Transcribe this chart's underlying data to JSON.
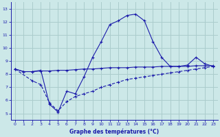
{
  "title": "Graphe des températures (°C)",
  "bg_color": "#cce8e8",
  "grid_color": "#aacccc",
  "line_color": "#1a1aaa",
  "xlim": [
    -0.5,
    23.5
  ],
  "ylim": [
    4.5,
    13.5
  ],
  "xticks": [
    0,
    1,
    2,
    3,
    4,
    5,
    6,
    7,
    8,
    9,
    10,
    11,
    12,
    13,
    14,
    15,
    16,
    17,
    18,
    19,
    20,
    21,
    22,
    23
  ],
  "yticks": [
    5,
    6,
    7,
    8,
    9,
    10,
    11,
    12,
    13
  ],
  "line1_x": [
    0,
    1,
    2,
    3,
    4,
    5,
    6,
    7,
    8,
    9,
    10,
    11,
    12,
    13,
    14,
    15,
    16,
    17,
    18,
    19,
    20,
    21,
    22,
    23
  ],
  "line1_y": [
    8.4,
    8.2,
    8.2,
    8.25,
    8.25,
    8.3,
    8.3,
    8.35,
    8.4,
    8.4,
    8.45,
    8.5,
    8.5,
    8.5,
    8.55,
    8.55,
    8.55,
    8.6,
    8.6,
    8.6,
    8.6,
    8.65,
    8.65,
    8.65
  ],
  "line2_x": [
    0,
    1,
    2,
    3,
    4,
    5,
    6,
    7,
    8,
    9,
    10,
    11,
    12,
    13,
    14,
    15,
    16,
    17,
    18,
    19,
    20,
    21,
    22,
    23
  ],
  "line2_y": [
    8.4,
    8.2,
    8.2,
    8.3,
    5.7,
    5.1,
    6.7,
    6.5,
    7.8,
    9.3,
    10.5,
    11.8,
    12.1,
    12.5,
    12.6,
    12.1,
    10.5,
    9.3,
    8.6,
    8.6,
    8.7,
    9.3,
    8.8,
    8.6
  ],
  "line3_x": [
    0,
    2,
    3,
    4,
    5,
    6,
    7,
    8,
    9,
    10,
    11,
    12,
    13,
    14,
    15,
    16,
    17,
    18,
    19,
    20,
    21,
    22,
    23
  ],
  "line3_y": [
    8.4,
    7.5,
    7.2,
    5.8,
    5.2,
    5.9,
    6.3,
    6.5,
    6.7,
    7.0,
    7.2,
    7.4,
    7.6,
    7.7,
    7.8,
    7.9,
    8.0,
    8.1,
    8.2,
    8.3,
    8.4,
    8.5,
    8.6
  ]
}
